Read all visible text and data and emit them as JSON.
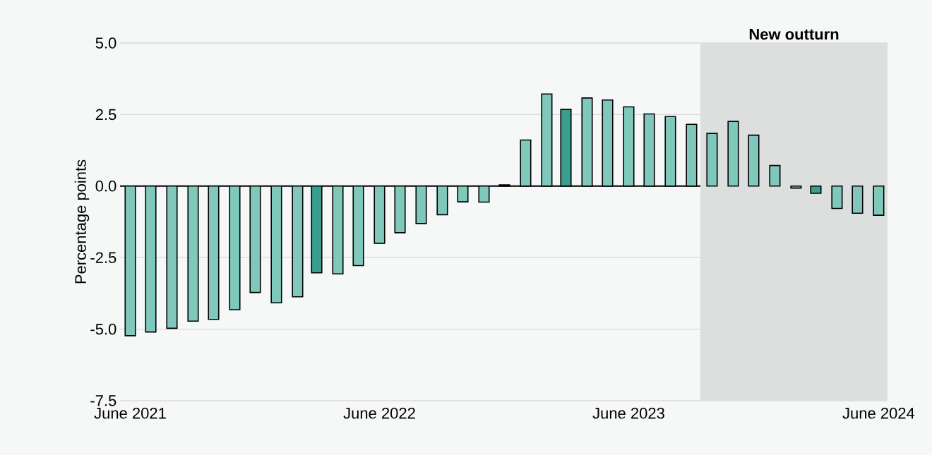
{
  "chart_data": {
    "type": "bar",
    "ylabel": "Percentage points",
    "x": [
      "2021-06",
      "2021-07",
      "2021-08",
      "2021-09",
      "2021-10",
      "2021-11",
      "2021-12",
      "2022-01",
      "2022-02",
      "2022-03",
      "2022-04",
      "2022-05",
      "2022-06",
      "2022-07",
      "2022-08",
      "2022-09",
      "2022-10",
      "2022-11",
      "2022-12",
      "2023-01",
      "2023-02",
      "2023-03",
      "2023-04",
      "2023-05",
      "2023-06",
      "2023-07",
      "2023-08",
      "2023-09",
      "2023-10",
      "2023-11",
      "2023-12",
      "2024-01",
      "2024-02",
      "2024-03",
      "2024-04",
      "2024-05",
      "2024-06"
    ],
    "values": [
      -5.23,
      -5.1,
      -4.97,
      -4.72,
      -4.66,
      -4.32,
      -3.72,
      -4.08,
      -3.87,
      -3.03,
      -3.07,
      -2.78,
      -2.0,
      -1.63,
      -1.31,
      -1.0,
      -0.55,
      -0.56,
      0.04,
      1.61,
      3.22,
      2.68,
      3.08,
      3.01,
      2.77,
      2.52,
      2.43,
      2.16,
      1.84,
      2.26,
      1.78,
      0.72,
      -0.07,
      -0.25,
      -0.78,
      -0.95,
      -1.02
    ],
    "colors": [
      "#80c8bc",
      "#80c8bc",
      "#80c8bc",
      "#80c8bc",
      "#80c8bc",
      "#80c8bc",
      "#80c8bc",
      "#80c8bc",
      "#80c8bc",
      "#3a9e8f",
      "#80c8bc",
      "#80c8bc",
      "#80c8bc",
      "#80c8bc",
      "#80c8bc",
      "#80c8bc",
      "#80c8bc",
      "#80c8bc",
      "#80c8bc",
      "#80c8bc",
      "#80c8bc",
      "#3a9e8f",
      "#80c8bc",
      "#80c8bc",
      "#80c8bc",
      "#80c8bc",
      "#80c8bc",
      "#80c8bc",
      "#80c8bc",
      "#80c8bc",
      "#80c8bc",
      "#80c8bc",
      "#80c8bc",
      "#3a9e8f",
      "#80c8bc",
      "#80c8bc",
      "#80c8bc"
    ],
    "xlim": [
      "2021-05-17",
      "2024-06-14"
    ],
    "xticks": [
      {
        "value": "2021-06",
        "label": "June 2021"
      },
      {
        "value": "2022-06",
        "label": "June 2022"
      },
      {
        "value": "2023-06",
        "label": "June 2023"
      },
      {
        "value": "2024-06",
        "label": "June 2024"
      }
    ],
    "ylim": [
      -7.5,
      5
    ],
    "yticks": [
      {
        "value": -7.5,
        "label": "-7.5"
      },
      {
        "value": -5,
        "label": "-5.0"
      },
      {
        "value": -2.5,
        "label": "-2.5"
      },
      {
        "value": 0,
        "label": "0.0"
      },
      {
        "value": 2.5,
        "label": "2.5"
      },
      {
        "value": 5,
        "label": "5.0"
      }
    ],
    "grid": "y",
    "bands": [
      {
        "axis": "x",
        "from": "2023-09-14",
        "to": "2024-06-14",
        "label": "New outturn",
        "color": "#dcdfde"
      }
    ]
  }
}
